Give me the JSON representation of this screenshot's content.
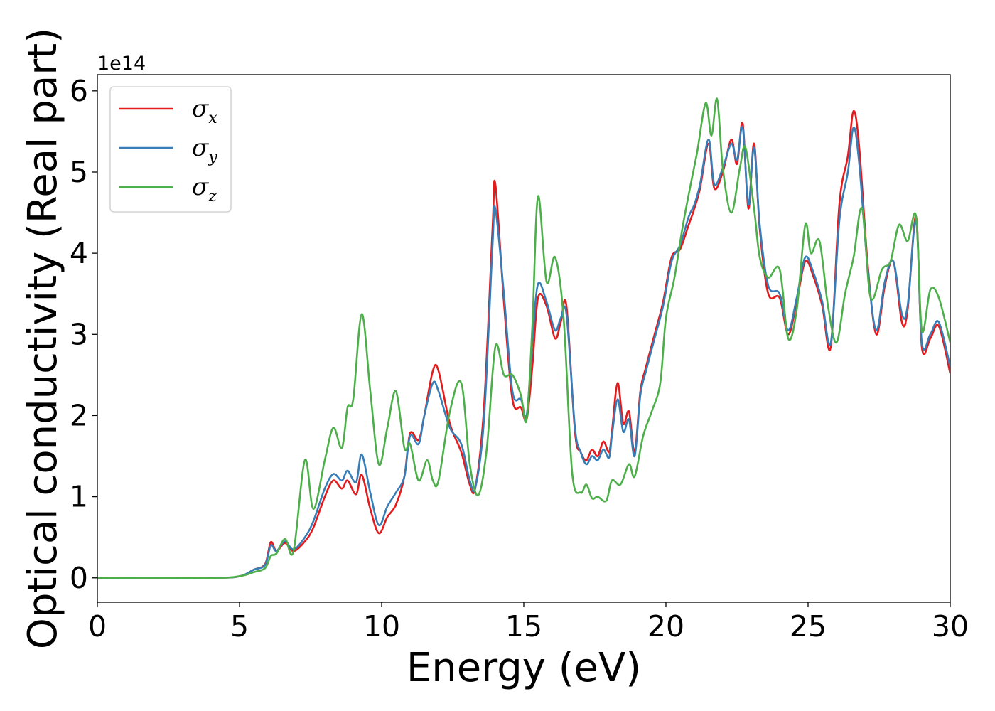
{
  "chart_data": {
    "type": "line",
    "xlabel": "Energy (eV)",
    "ylabel": "Optical conductivity (Real part)",
    "y_offset_label": "1e14",
    "xlim": [
      0,
      30
    ],
    "ylim": [
      -0.3,
      6.2
    ],
    "xticks": [
      0,
      5,
      10,
      15,
      20,
      25,
      30
    ],
    "yticks": [
      0,
      1,
      2,
      3,
      4,
      5,
      6
    ],
    "grid": false,
    "legend": {
      "position": "top-left"
    },
    "series": [
      {
        "name": "σx",
        "label_base": "σ",
        "label_sub": "x",
        "color": "#e41a1c",
        "x": [
          0,
          4,
          5,
          5.5,
          5.9,
          6.1,
          6.3,
          6.6,
          6.9,
          7.3,
          7.6,
          8.0,
          8.3,
          8.6,
          8.8,
          9.1,
          9.3,
          9.6,
          9.9,
          10.2,
          10.5,
          10.8,
          11.0,
          11.3,
          11.5,
          11.8,
          12.0,
          12.4,
          12.8,
          13.1,
          13.3,
          13.6,
          13.9,
          14.0,
          14.3,
          14.6,
          14.9,
          15.1,
          15.3,
          15.5,
          15.8,
          16.1,
          16.3,
          16.5,
          16.8,
          17.0,
          17.2,
          17.4,
          17.6,
          17.8,
          18.0,
          18.1,
          18.3,
          18.5,
          18.7,
          18.9,
          19.1,
          19.3,
          19.6,
          19.9,
          20.2,
          20.5,
          20.8,
          21.0,
          21.2,
          21.5,
          21.7,
          22.0,
          22.3,
          22.5,
          22.7,
          22.9,
          23.1,
          23.3,
          23.6,
          24.0,
          24.3,
          24.6,
          24.9,
          25.2,
          25.5,
          25.8,
          26.1,
          26.4,
          26.6,
          26.8,
          27.1,
          27.4,
          27.7,
          28.0,
          28.3,
          28.5,
          28.8,
          29.0,
          29.3,
          29.6,
          30.0
        ],
        "y": [
          0.0,
          0.0,
          0.02,
          0.1,
          0.17,
          0.44,
          0.33,
          0.43,
          0.33,
          0.45,
          0.62,
          1.0,
          1.2,
          1.1,
          1.2,
          1.03,
          1.27,
          0.85,
          0.55,
          0.75,
          0.9,
          1.25,
          1.78,
          1.7,
          2.0,
          2.55,
          2.55,
          1.9,
          1.55,
          1.15,
          1.12,
          2.1,
          4.3,
          4.85,
          3.4,
          2.2,
          2.1,
          1.95,
          2.6,
          3.45,
          3.35,
          2.95,
          3.15,
          3.35,
          1.8,
          1.55,
          1.45,
          1.58,
          1.5,
          1.68,
          1.55,
          1.8,
          2.4,
          1.9,
          2.05,
          1.55,
          2.3,
          2.6,
          3.0,
          3.4,
          3.95,
          4.05,
          4.35,
          4.55,
          4.8,
          5.35,
          4.8,
          5.0,
          5.4,
          5.1,
          5.6,
          4.55,
          5.35,
          4.3,
          3.5,
          3.45,
          3.0,
          3.4,
          3.9,
          3.7,
          3.35,
          2.85,
          4.6,
          5.2,
          5.75,
          5.3,
          3.85,
          3.0,
          3.6,
          3.9,
          3.15,
          3.3,
          4.45,
          2.85,
          2.95,
          3.1,
          2.52
        ]
      },
      {
        "name": "σy",
        "label_base": "σ",
        "label_sub": "y",
        "color": "#377eb8",
        "x": [
          0,
          4,
          5,
          5.5,
          5.9,
          6.1,
          6.3,
          6.6,
          6.9,
          7.3,
          7.6,
          8.0,
          8.3,
          8.6,
          8.8,
          9.1,
          9.3,
          9.6,
          9.9,
          10.2,
          10.5,
          10.8,
          11.0,
          11.3,
          11.5,
          11.8,
          12.0,
          12.4,
          12.8,
          13.1,
          13.3,
          13.6,
          13.9,
          14.0,
          14.3,
          14.6,
          14.9,
          15.1,
          15.3,
          15.5,
          15.8,
          16.1,
          16.3,
          16.5,
          16.8,
          17.0,
          17.2,
          17.4,
          17.6,
          17.8,
          18.0,
          18.1,
          18.3,
          18.5,
          18.7,
          18.9,
          19.1,
          19.3,
          19.6,
          19.9,
          20.2,
          20.5,
          20.8,
          21.0,
          21.2,
          21.5,
          21.7,
          22.0,
          22.3,
          22.5,
          22.7,
          22.9,
          23.1,
          23.3,
          23.6,
          24.0,
          24.3,
          24.6,
          24.9,
          25.2,
          25.5,
          25.8,
          26.1,
          26.4,
          26.6,
          26.8,
          27.1,
          27.4,
          27.7,
          28.0,
          28.3,
          28.5,
          28.8,
          29.0,
          29.3,
          29.6,
          30.0
        ],
        "y": [
          0.0,
          0.0,
          0.02,
          0.1,
          0.16,
          0.4,
          0.33,
          0.45,
          0.35,
          0.5,
          0.7,
          1.1,
          1.28,
          1.2,
          1.32,
          1.18,
          1.52,
          1.05,
          0.65,
          0.88,
          1.05,
          1.25,
          1.75,
          1.65,
          2.0,
          2.4,
          2.3,
          1.85,
          1.65,
          1.2,
          1.12,
          1.95,
          4.1,
          4.55,
          3.5,
          2.3,
          2.2,
          2.0,
          2.9,
          3.62,
          3.4,
          3.05,
          3.2,
          3.25,
          1.85,
          1.55,
          1.4,
          1.5,
          1.45,
          1.58,
          1.48,
          1.75,
          2.2,
          1.8,
          1.95,
          1.5,
          2.25,
          2.55,
          2.95,
          3.35,
          3.9,
          4.1,
          4.45,
          4.6,
          4.85,
          5.4,
          4.85,
          5.05,
          5.35,
          5.15,
          5.55,
          4.6,
          5.3,
          4.35,
          3.6,
          3.5,
          3.05,
          3.45,
          3.95,
          3.75,
          3.4,
          2.9,
          4.4,
          5.0,
          5.55,
          5.1,
          3.8,
          3.05,
          3.65,
          3.9,
          3.25,
          3.35,
          4.4,
          2.9,
          3.0,
          3.15,
          2.6
        ]
      },
      {
        "name": "σz",
        "label_base": "σ",
        "label_sub": "z",
        "color": "#4daf4a",
        "x": [
          0,
          4,
          5,
          5.5,
          5.9,
          6.1,
          6.3,
          6.6,
          6.9,
          7.3,
          7.6,
          8.0,
          8.3,
          8.6,
          8.8,
          9.0,
          9.3,
          9.6,
          9.9,
          10.2,
          10.5,
          10.8,
          11.0,
          11.3,
          11.6,
          11.8,
          12.0,
          12.4,
          12.8,
          13.1,
          13.4,
          13.7,
          14.0,
          14.3,
          14.6,
          14.9,
          15.1,
          15.3,
          15.5,
          15.8,
          16.1,
          16.4,
          16.7,
          17.0,
          17.2,
          17.4,
          17.6,
          17.9,
          18.1,
          18.4,
          18.7,
          18.9,
          19.2,
          19.5,
          19.8,
          20.0,
          20.3,
          20.6,
          20.9,
          21.1,
          21.4,
          21.6,
          21.8,
          22.0,
          22.3,
          22.6,
          22.8,
          23.1,
          23.3,
          23.6,
          24.0,
          24.3,
          24.6,
          24.9,
          25.1,
          25.4,
          25.7,
          26.0,
          26.3,
          26.6,
          26.9,
          27.2,
          27.6,
          27.9,
          28.2,
          28.5,
          28.8,
          29.0,
          29.3,
          29.6,
          30.0
        ],
        "y": [
          0.0,
          0.0,
          0.02,
          0.07,
          0.12,
          0.27,
          0.3,
          0.48,
          0.33,
          1.45,
          0.85,
          1.45,
          1.85,
          1.6,
          2.1,
          2.2,
          3.25,
          2.3,
          1.4,
          1.85,
          2.3,
          1.6,
          1.65,
          1.2,
          1.45,
          1.2,
          1.2,
          2.05,
          2.4,
          1.4,
          1.02,
          1.6,
          2.85,
          2.5,
          2.5,
          2.25,
          1.95,
          3.1,
          4.7,
          3.65,
          3.95,
          3.2,
          1.3,
          1.05,
          1.15,
          0.98,
          1.0,
          0.95,
          1.2,
          1.15,
          1.4,
          1.25,
          1.75,
          2.05,
          2.4,
          3.2,
          3.7,
          4.35,
          4.9,
          5.25,
          5.85,
          5.45,
          5.9,
          5.05,
          4.5,
          5.05,
          5.3,
          4.55,
          3.95,
          3.7,
          3.8,
          2.95,
          3.3,
          4.35,
          4.0,
          4.15,
          3.35,
          2.9,
          3.5,
          3.95,
          4.55,
          3.45,
          3.8,
          3.9,
          4.35,
          4.15,
          4.45,
          3.05,
          3.55,
          3.45,
          2.9
        ]
      }
    ]
  }
}
